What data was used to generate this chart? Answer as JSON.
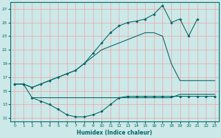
{
  "xlabel": "Humidex (Indice chaleur)",
  "background_color": "#cce8e8",
  "grid_color": "#f0a0a0",
  "line_color": "#006666",
  "xlim": [
    -0.5,
    23.5
  ],
  "ylim": [
    10.5,
    28.0
  ],
  "yticks": [
    11,
    13,
    15,
    17,
    19,
    21,
    23,
    25,
    27
  ],
  "xticks": [
    0,
    1,
    2,
    3,
    4,
    5,
    6,
    7,
    8,
    9,
    10,
    11,
    12,
    13,
    14,
    15,
    16,
    17,
    18,
    19,
    20,
    21,
    22,
    23
  ],
  "line_top_x": [
    0,
    1,
    2,
    3,
    4,
    5,
    6,
    7,
    8,
    9,
    10,
    11,
    12,
    13,
    14,
    15,
    16,
    17,
    18,
    19,
    20,
    21
  ],
  "line_top_y": [
    16.0,
    16.0,
    15.5,
    16.0,
    16.5,
    17.0,
    17.5,
    18.0,
    19.0,
    20.5,
    22.0,
    23.5,
    24.5,
    25.0,
    25.2,
    25.5,
    26.2,
    27.5,
    25.0,
    25.5,
    23.0,
    25.5
  ],
  "line_mid_x": [
    0,
    1,
    2,
    3,
    4,
    5,
    6,
    7,
    8,
    9,
    10,
    11,
    12,
    13,
    14,
    15,
    16,
    17,
    18,
    19,
    20,
    21,
    22,
    23
  ],
  "line_mid_y": [
    16.0,
    16.0,
    15.5,
    16.0,
    16.5,
    17.0,
    17.5,
    18.0,
    19.0,
    20.0,
    21.0,
    21.5,
    22.0,
    22.5,
    23.0,
    23.5,
    23.5,
    23.0,
    19.0,
    16.5,
    16.5,
    16.5,
    16.5,
    16.5
  ],
  "line_bot_x": [
    0,
    1,
    2,
    3,
    4,
    5,
    6,
    7,
    8,
    9,
    10,
    11,
    12,
    13,
    14,
    15,
    16,
    17,
    18,
    19,
    20,
    21,
    22,
    23
  ],
  "line_bot_y": [
    16.0,
    16.0,
    14.0,
    13.5,
    13.0,
    12.3,
    11.5,
    11.2,
    11.2,
    11.5,
    12.0,
    13.0,
    14.0,
    14.2,
    14.2,
    14.2,
    14.2,
    14.2,
    14.2,
    14.2,
    14.2,
    14.2,
    14.2,
    14.2
  ],
  "line_flat_x": [
    2,
    3,
    4,
    5,
    6,
    7,
    8,
    9,
    10,
    11,
    12,
    13,
    14,
    15,
    16,
    17,
    18,
    19,
    20,
    21,
    22,
    23
  ],
  "line_flat_y": [
    14.0,
    14.0,
    14.0,
    14.0,
    14.0,
    14.0,
    14.0,
    14.0,
    14.0,
    14.0,
    14.0,
    14.0,
    14.0,
    14.0,
    14.0,
    14.0,
    14.0,
    14.5,
    14.5,
    14.5,
    14.5,
    14.5
  ]
}
